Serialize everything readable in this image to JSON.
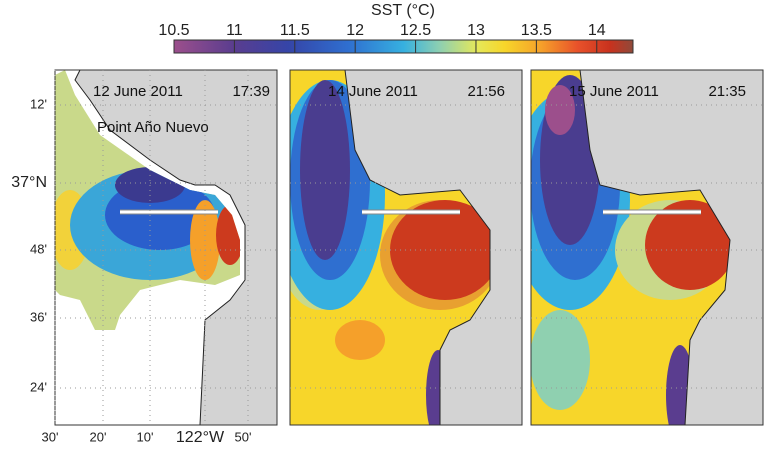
{
  "colorbar": {
    "title": "SST (°C)",
    "ticks": [
      10.5,
      11,
      11.5,
      12,
      12.5,
      13,
      13.5,
      14
    ],
    "lim": [
      10.5,
      14.3
    ]
  },
  "lat_labels": [
    "12'",
    "37°N",
    "48'",
    "36'",
    "24'"
  ],
  "lon_labels": [
    "30'",
    "20'",
    "10'",
    "122°W",
    "50'"
  ],
  "panels": [
    {
      "date": "12 June 2011",
      "time": "17:39",
      "place": "Point Año Nuevo"
    },
    {
      "date": "14 June 2011",
      "time": "21:56"
    },
    {
      "date": "15 June 2011",
      "time": "21:35"
    }
  ]
}
